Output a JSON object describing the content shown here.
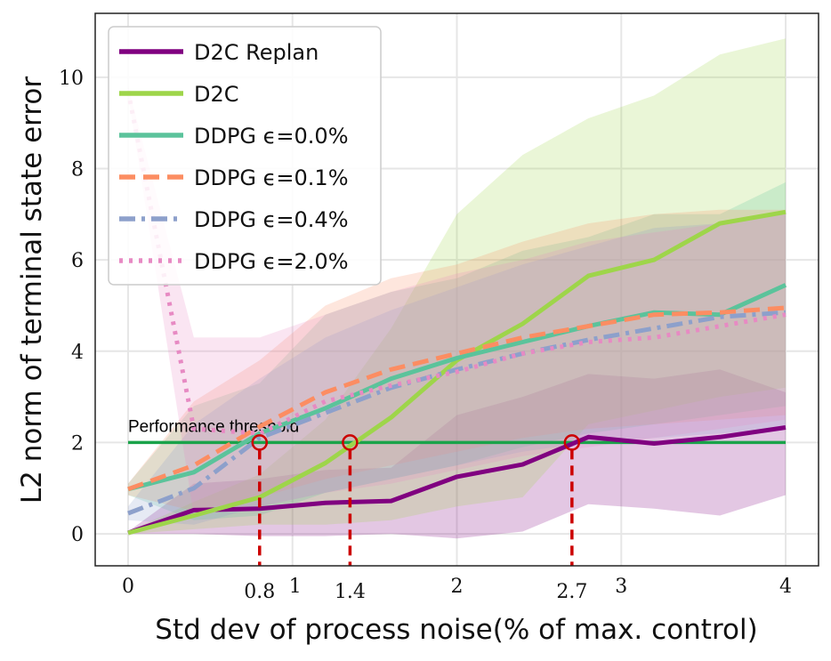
{
  "chart_data": {
    "type": "line",
    "title": "",
    "xlabel": "Std dev of process noise(% of max. control)",
    "ylabel": "L2 norm of terminal state error",
    "xlim": [
      -0.2,
      4.2
    ],
    "ylim": [
      -0.7,
      11.4
    ],
    "xticks": [
      {
        "value": 0,
        "label": "0"
      },
      {
        "value": 1,
        "label": "1"
      },
      {
        "value": 2,
        "label": "2"
      },
      {
        "value": 3,
        "label": "3"
      },
      {
        "value": 4,
        "label": "4"
      }
    ],
    "yticks": [
      {
        "value": 0,
        "label": "0"
      },
      {
        "value": 2,
        "label": "2"
      },
      {
        "value": 4,
        "label": "4"
      },
      {
        "value": 6,
        "label": "6"
      },
      {
        "value": 8,
        "label": "8"
      },
      {
        "value": 10,
        "label": "10"
      }
    ],
    "grid": true,
    "legend_position": "top-left",
    "x": [
      0,
      0.4,
      0.8,
      1.2,
      1.6,
      2.0,
      2.4,
      2.8,
      3.2,
      3.6,
      4.0
    ],
    "series": [
      {
        "name": "D2C Replan",
        "color": "#800080",
        "dash": "solid",
        "values": [
          0.02,
          0.52,
          0.55,
          0.68,
          0.72,
          1.25,
          1.52,
          2.12,
          1.98,
          2.12,
          2.33
        ],
        "band_lower": [
          0.0,
          0.0,
          -0.05,
          -0.05,
          0.0,
          -0.1,
          0.05,
          0.65,
          0.55,
          0.4,
          0.85
        ],
        "band_upper": [
          0.05,
          1.1,
          1.2,
          1.4,
          1.45,
          2.6,
          3.0,
          3.5,
          3.4,
          3.6,
          3.1
        ]
      },
      {
        "name": "D2C",
        "color": "#9ed54a",
        "dash": "solid",
        "values": [
          0.02,
          0.4,
          0.8,
          1.55,
          2.55,
          3.8,
          4.6,
          5.65,
          6.0,
          6.8,
          7.05
        ],
        "band_lower": [
          0.0,
          0.1,
          0.2,
          0.2,
          0.3,
          0.6,
          0.8,
          2.4,
          2.7,
          3.0,
          3.2
        ],
        "band_upper": [
          0.05,
          0.7,
          1.3,
          2.5,
          4.5,
          7.0,
          8.3,
          9.1,
          9.6,
          10.5,
          10.85
        ]
      },
      {
        "name": "DDPG ϵ=0.0%",
        "color": "#5bc39b",
        "dash": "solid",
        "values": [
          0.98,
          1.35,
          2.2,
          2.75,
          3.4,
          3.85,
          4.2,
          4.55,
          4.85,
          4.8,
          5.45
        ],
        "band_lower": [
          0.85,
          0.3,
          0.4,
          0.9,
          1.2,
          1.5,
          1.9,
          2.2,
          2.4,
          2.6,
          2.8
        ],
        "band_upper": [
          1.1,
          2.8,
          3.3,
          4.8,
          5.3,
          5.6,
          6.2,
          6.5,
          7.0,
          7.0,
          7.7
        ]
      },
      {
        "name": "DDPG ϵ=0.1%",
        "color": "#fc8d62",
        "dash": "dashed",
        "values": [
          0.98,
          1.5,
          2.35,
          3.1,
          3.6,
          3.95,
          4.3,
          4.55,
          4.8,
          4.85,
          4.95
        ],
        "band_lower": [
          0.85,
          0.5,
          0.8,
          1.2,
          1.5,
          1.8,
          2.1,
          2.3,
          2.4,
          2.5,
          2.6
        ],
        "band_upper": [
          1.1,
          2.9,
          3.8,
          5.0,
          5.6,
          5.9,
          6.4,
          6.8,
          7.0,
          7.1,
          7.1
        ]
      },
      {
        "name": "DDPG ϵ=0.4%",
        "color": "#8da0cb",
        "dash": "dashdot",
        "values": [
          0.45,
          1.0,
          2.1,
          2.65,
          3.2,
          3.6,
          3.95,
          4.25,
          4.5,
          4.75,
          4.85
        ],
        "band_lower": [
          0.3,
          0.2,
          0.6,
          0.9,
          1.2,
          1.5,
          1.8,
          2.0,
          2.1,
          2.2,
          2.3
        ],
        "band_upper": [
          0.6,
          2.4,
          3.4,
          4.3,
          4.9,
          5.4,
          5.9,
          6.3,
          6.7,
          6.8,
          7.0
        ]
      },
      {
        "name": "DDPG ϵ=2.0%",
        "color": "#e78ac3",
        "dash": "dotted",
        "values": [
          9.7,
          2.3,
          2.2,
          2.9,
          3.25,
          3.55,
          3.95,
          4.2,
          4.3,
          4.55,
          4.8
        ],
        "band_lower": [
          9.6,
          0.4,
          0.6,
          0.9,
          1.1,
          1.4,
          1.7,
          1.9,
          2.1,
          2.3,
          2.5
        ],
        "band_upper": [
          9.8,
          4.3,
          4.3,
          4.8,
          5.3,
          5.7,
          6.0,
          6.4,
          6.6,
          6.8,
          7.0
        ]
      }
    ],
    "threshold": {
      "label": "Performance threshold",
      "value": 2,
      "x_start": 0,
      "x_end": 4,
      "color": "#1aa34a"
    },
    "crossings": [
      {
        "x": 0.8,
        "label": "0.8"
      },
      {
        "x": 1.35,
        "label": "1.4"
      },
      {
        "x": 2.7,
        "label": "2.7"
      }
    ],
    "crossing_color": "#cc0000"
  }
}
